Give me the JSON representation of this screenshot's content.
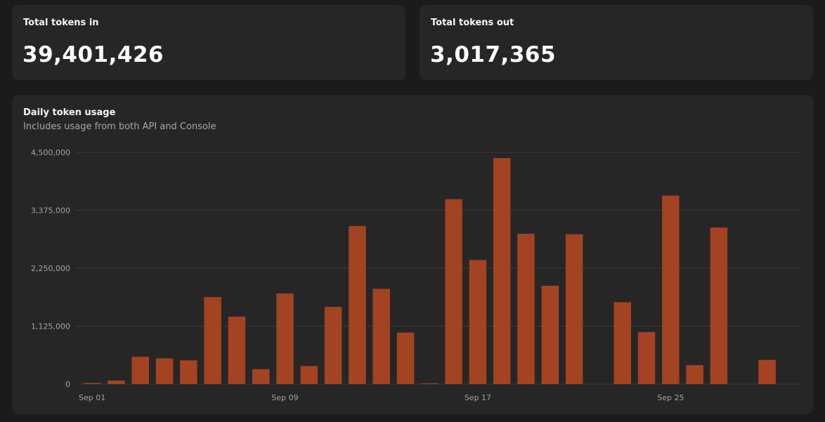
{
  "stats": {
    "tokens_in": {
      "label": "Total tokens in",
      "value": "39,401,426"
    },
    "tokens_out": {
      "label": "Total tokens out",
      "value": "3,017,365"
    }
  },
  "chart": {
    "title": "Daily token usage",
    "subtitle": "Includes usage from both API and Console"
  },
  "colors": {
    "bar": "#a34322"
  },
  "chart_data": {
    "type": "bar",
    "title": "Daily token usage",
    "subtitle": "Includes usage from both API and Console",
    "xlabel": "",
    "ylabel": "",
    "ylim": [
      0,
      4500000
    ],
    "yticks": [
      "0",
      "1,125,000",
      "2,250,000",
      "3,375,000",
      "4,500,000"
    ],
    "ytick_values": [
      0,
      1125000,
      2250000,
      3375000,
      4500000
    ],
    "grid": true,
    "categories": [
      "Sep 01",
      "Sep 02",
      "Sep 03",
      "Sep 04",
      "Sep 05",
      "Sep 06",
      "Sep 07",
      "Sep 08",
      "Sep 09",
      "Sep 10",
      "Sep 11",
      "Sep 12",
      "Sep 13",
      "Sep 14",
      "Sep 15",
      "Sep 16",
      "Sep 17",
      "Sep 18",
      "Sep 19",
      "Sep 20",
      "Sep 21",
      "Sep 22",
      "Sep 23",
      "Sep 24",
      "Sep 25",
      "Sep 26",
      "Sep 27",
      "Sep 28",
      "Sep 29"
    ],
    "xtick_labels": [
      {
        "index": 0,
        "label": "Sep 01"
      },
      {
        "index": 8,
        "label": "Sep 09"
      },
      {
        "index": 16,
        "label": "Sep 17"
      },
      {
        "index": 24,
        "label": "Sep 25"
      }
    ],
    "values": [
      20000,
      70000,
      530000,
      500000,
      460000,
      1690000,
      1310000,
      290000,
      1760000,
      350000,
      1500000,
      3070000,
      1850000,
      1000000,
      15000,
      3590000,
      2410000,
      4390000,
      2920000,
      1910000,
      2910000,
      0,
      1590000,
      1010000,
      3660000,
      370000,
      3040000,
      0,
      470000
    ]
  }
}
